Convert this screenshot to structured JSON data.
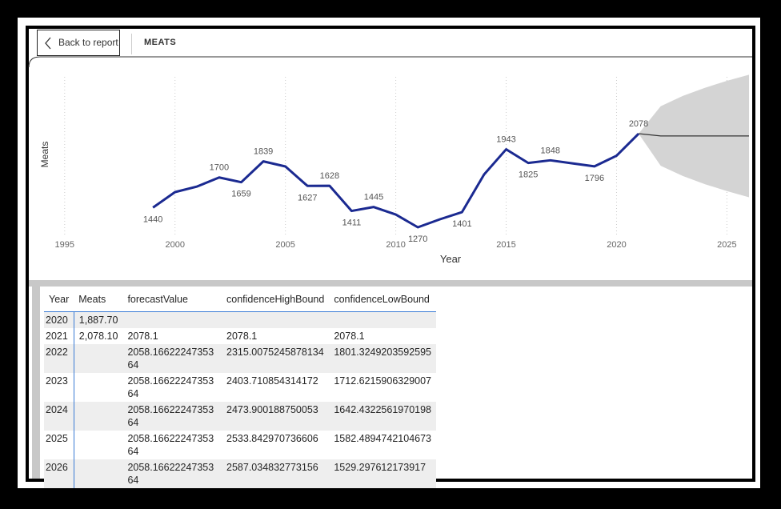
{
  "header": {
    "back": "Back to report",
    "title": "MEATS"
  },
  "chart_data": {
    "type": "line",
    "y_label": "Meats",
    "x_label": "Year",
    "x": [
      1999,
      2000,
      2001,
      2002,
      2003,
      2004,
      2005,
      2006,
      2007,
      2008,
      2009,
      2010,
      2011,
      2012,
      2013,
      2014,
      2015,
      2016,
      2017,
      2018,
      2019,
      2020,
      2021
    ],
    "color": "#1b2a91",
    "values": [
      1440,
      1574,
      1622,
      1700,
      1659,
      1839,
      1795,
      1627,
      1628,
      1411,
      1445,
      1380,
      1270,
      1339,
      1401,
      1726,
      1943,
      1825,
      1848,
      1822,
      1796,
      1887.7,
      2078
    ],
    "value_labels": [
      "1440",
      null,
      null,
      "1700",
      "1659",
      "1839",
      null,
      "1627",
      "1628",
      "1411",
      "1445",
      null,
      "1270",
      null,
      "1401",
      null,
      "1943",
      "1825",
      "1848",
      null,
      "1796",
      null,
      "2078"
    ],
    "forecast": {
      "x": [
        2021,
        2022,
        2023,
        2024,
        2025,
        2026
      ],
      "values": [
        2078.1,
        2058.17,
        2058.17,
        2058.17,
        2058.17,
        2058.17
      ],
      "high": [
        2078.1,
        2315.0,
        2403.7,
        2473.9,
        2533.8,
        2587.0
      ],
      "low": [
        2078.1,
        1801.3,
        1712.6,
        1642.4,
        1582.5,
        1529.3
      ],
      "color": "#333333",
      "band_color": "#d4d4d4"
    },
    "xlim": [
      1994.5,
      2026
    ],
    "ylim": [
      1194,
      2610
    ],
    "xticks": [
      1995,
      2000,
      2005,
      2010,
      2015,
      2020,
      2025
    ],
    "grid": true
  },
  "table": {
    "columns": [
      "Year",
      "Meats",
      "forecastValue",
      "confidenceHighBound",
      "confidenceLowBound"
    ],
    "rows": [
      [
        "2020",
        "1,887.70",
        null,
        null,
        null
      ],
      [
        "2021",
        "2,078.10",
        "2078.1",
        "2078.1",
        "2078.1"
      ],
      [
        "2022",
        null,
        "2058.1662224735364",
        "2315.0075245878134",
        "1801.3249203592595"
      ],
      [
        "2023",
        null,
        "2058.1662224735364",
        "2403.710854314172",
        "1712.6215906329007"
      ],
      [
        "2024",
        null,
        "2058.1662224735364",
        "2473.900188750053",
        "1642.4322561970198"
      ],
      [
        "2025",
        null,
        "2058.1662224735364",
        "2533.842970736606",
        "1582.4894742104673"
      ],
      [
        "2026",
        null,
        "2058.1662224735364",
        "2587.034832773156",
        "1529.297612173917"
      ]
    ]
  }
}
